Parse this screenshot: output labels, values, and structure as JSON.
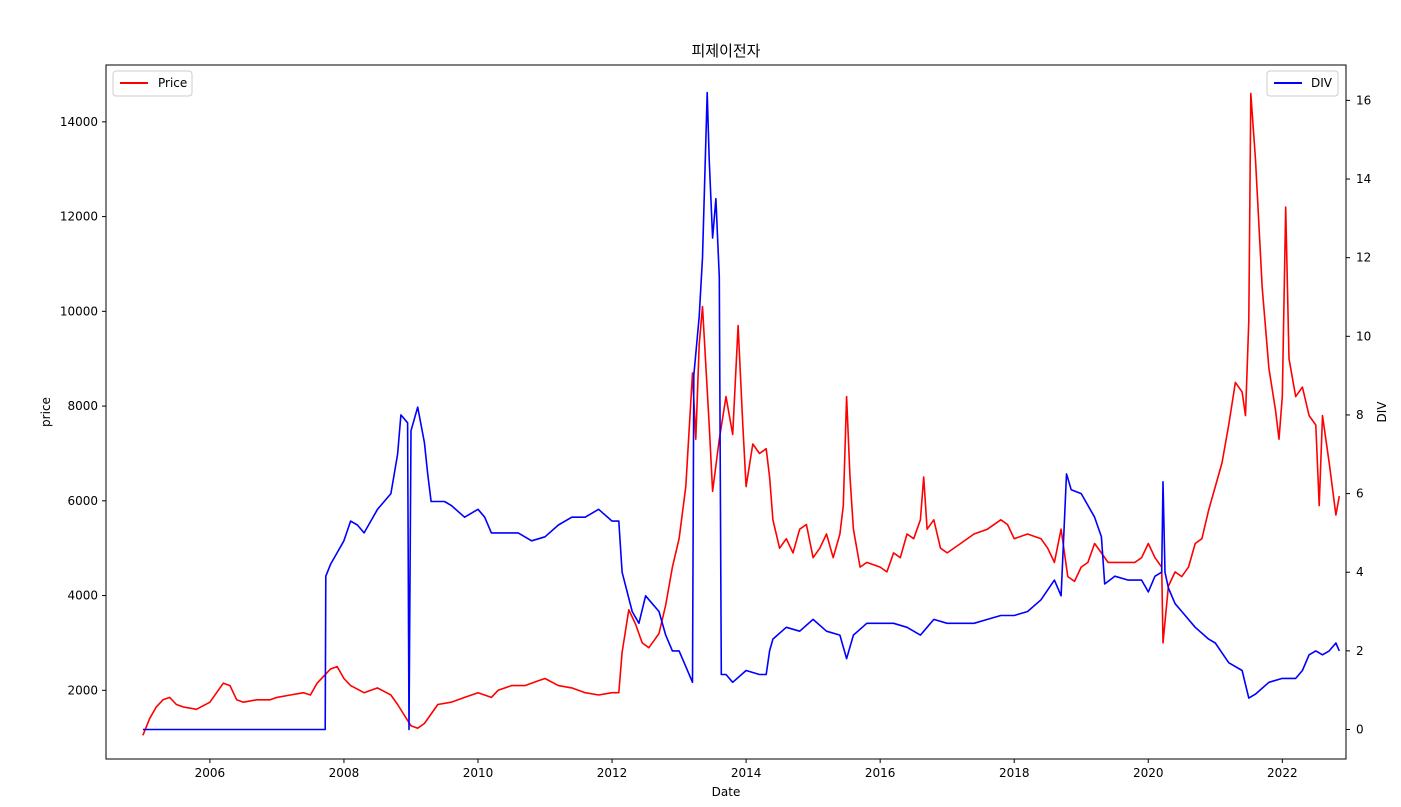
{
  "chart_data": {
    "type": "line",
    "title": "피제이전자",
    "xlabel": "Date",
    "ylabel_left": "price",
    "ylabel_right": "DIV",
    "xlim": [
      2004.45,
      2022.95
    ],
    "ylim_left": [
      550,
      15200
    ],
    "ylim_right": [
      -0.75,
      16.9
    ],
    "x_ticks": [
      2006,
      2008,
      2010,
      2012,
      2014,
      2016,
      2018,
      2020,
      2022
    ],
    "y_ticks_left": [
      2000,
      4000,
      6000,
      8000,
      10000,
      12000,
      14000
    ],
    "y_ticks_right": [
      0,
      2,
      4,
      6,
      8,
      10,
      12,
      14,
      16
    ],
    "legend_left": "top-left",
    "legend_right": "top-right",
    "grid": false,
    "series": [
      {
        "name": "Price",
        "axis": "left",
        "color": "#ff0000",
        "points": [
          [
            2005.0,
            1050
          ],
          [
            2005.1,
            1400
          ],
          [
            2005.2,
            1650
          ],
          [
            2005.3,
            1800
          ],
          [
            2005.4,
            1850
          ],
          [
            2005.5,
            1700
          ],
          [
            2005.6,
            1650
          ],
          [
            2005.8,
            1600
          ],
          [
            2006.0,
            1750
          ],
          [
            2006.1,
            1950
          ],
          [
            2006.2,
            2150
          ],
          [
            2006.3,
            2100
          ],
          [
            2006.4,
            1800
          ],
          [
            2006.5,
            1750
          ],
          [
            2006.7,
            1800
          ],
          [
            2006.9,
            1800
          ],
          [
            2007.0,
            1850
          ],
          [
            2007.2,
            1900
          ],
          [
            2007.4,
            1950
          ],
          [
            2007.5,
            1900
          ],
          [
            2007.6,
            2150
          ],
          [
            2007.7,
            2300
          ],
          [
            2007.8,
            2450
          ],
          [
            2007.9,
            2500
          ],
          [
            2008.0,
            2250
          ],
          [
            2008.1,
            2100
          ],
          [
            2008.3,
            1950
          ],
          [
            2008.5,
            2050
          ],
          [
            2008.7,
            1900
          ],
          [
            2008.8,
            1700
          ],
          [
            2009.0,
            1250
          ],
          [
            2009.1,
            1200
          ],
          [
            2009.2,
            1300
          ],
          [
            2009.4,
            1700
          ],
          [
            2009.6,
            1750
          ],
          [
            2009.8,
            1850
          ],
          [
            2010.0,
            1950
          ],
          [
            2010.2,
            1850
          ],
          [
            2010.3,
            2000
          ],
          [
            2010.5,
            2100
          ],
          [
            2010.7,
            2100
          ],
          [
            2010.9,
            2200
          ],
          [
            2011.0,
            2250
          ],
          [
            2011.2,
            2100
          ],
          [
            2011.4,
            2050
          ],
          [
            2011.6,
            1950
          ],
          [
            2011.8,
            1900
          ],
          [
            2012.0,
            1950
          ],
          [
            2012.1,
            1950
          ],
          [
            2012.15,
            2800
          ],
          [
            2012.25,
            3700
          ],
          [
            2012.35,
            3400
          ],
          [
            2012.45,
            3000
          ],
          [
            2012.55,
            2900
          ],
          [
            2012.7,
            3200
          ],
          [
            2012.8,
            3800
          ],
          [
            2012.9,
            4600
          ],
          [
            2013.0,
            5200
          ],
          [
            2013.1,
            6300
          ],
          [
            2013.2,
            8700
          ],
          [
            2013.25,
            7300
          ],
          [
            2013.3,
            9300
          ],
          [
            2013.35,
            10100
          ],
          [
            2013.45,
            7600
          ],
          [
            2013.5,
            6200
          ],
          [
            2013.6,
            7300
          ],
          [
            2013.7,
            8200
          ],
          [
            2013.8,
            7400
          ],
          [
            2013.88,
            9700
          ],
          [
            2013.95,
            7600
          ],
          [
            2014.0,
            6300
          ],
          [
            2014.1,
            7200
          ],
          [
            2014.2,
            7000
          ],
          [
            2014.3,
            7100
          ],
          [
            2014.35,
            6500
          ],
          [
            2014.4,
            5600
          ],
          [
            2014.5,
            5000
          ],
          [
            2014.6,
            5200
          ],
          [
            2014.7,
            4900
          ],
          [
            2014.8,
            5400
          ],
          [
            2014.9,
            5500
          ],
          [
            2015.0,
            4800
          ],
          [
            2015.1,
            5000
          ],
          [
            2015.2,
            5300
          ],
          [
            2015.3,
            4800
          ],
          [
            2015.4,
            5300
          ],
          [
            2015.45,
            5900
          ],
          [
            2015.5,
            8200
          ],
          [
            2015.55,
            6500
          ],
          [
            2015.6,
            5400
          ],
          [
            2015.7,
            4600
          ],
          [
            2015.8,
            4700
          ],
          [
            2016.0,
            4600
          ],
          [
            2016.1,
            4500
          ],
          [
            2016.2,
            4900
          ],
          [
            2016.3,
            4800
          ],
          [
            2016.4,
            5300
          ],
          [
            2016.5,
            5200
          ],
          [
            2016.6,
            5600
          ],
          [
            2016.65,
            6500
          ],
          [
            2016.7,
            5400
          ],
          [
            2016.8,
            5600
          ],
          [
            2016.9,
            5000
          ],
          [
            2017.0,
            4900
          ],
          [
            2017.2,
            5100
          ],
          [
            2017.4,
            5300
          ],
          [
            2017.6,
            5400
          ],
          [
            2017.8,
            5600
          ],
          [
            2017.9,
            5500
          ],
          [
            2018.0,
            5200
          ],
          [
            2018.2,
            5300
          ],
          [
            2018.4,
            5200
          ],
          [
            2018.5,
            5000
          ],
          [
            2018.6,
            4700
          ],
          [
            2018.7,
            5400
          ],
          [
            2018.8,
            4400
          ],
          [
            2018.9,
            4300
          ],
          [
            2019.0,
            4600
          ],
          [
            2019.1,
            4700
          ],
          [
            2019.2,
            5100
          ],
          [
            2019.3,
            4900
          ],
          [
            2019.4,
            4700
          ],
          [
            2019.6,
            4700
          ],
          [
            2019.8,
            4700
          ],
          [
            2019.9,
            4800
          ],
          [
            2020.0,
            5100
          ],
          [
            2020.1,
            4800
          ],
          [
            2020.2,
            4600
          ],
          [
            2020.22,
            3000
          ],
          [
            2020.3,
            4200
          ],
          [
            2020.4,
            4500
          ],
          [
            2020.5,
            4400
          ],
          [
            2020.6,
            4600
          ],
          [
            2020.7,
            5100
          ],
          [
            2020.8,
            5200
          ],
          [
            2020.9,
            5800
          ],
          [
            2021.0,
            6300
          ],
          [
            2021.1,
            6800
          ],
          [
            2021.2,
            7600
          ],
          [
            2021.3,
            8500
          ],
          [
            2021.4,
            8300
          ],
          [
            2021.45,
            7800
          ],
          [
            2021.5,
            9800
          ],
          [
            2021.53,
            14600
          ],
          [
            2021.6,
            13200
          ],
          [
            2021.7,
            10500
          ],
          [
            2021.8,
            8800
          ],
          [
            2021.9,
            7900
          ],
          [
            2021.95,
            7300
          ],
          [
            2022.0,
            8200
          ],
          [
            2022.05,
            12200
          ],
          [
            2022.1,
            9000
          ],
          [
            2022.2,
            8200
          ],
          [
            2022.3,
            8400
          ],
          [
            2022.4,
            7800
          ],
          [
            2022.5,
            7600
          ],
          [
            2022.55,
            5900
          ],
          [
            2022.6,
            7800
          ],
          [
            2022.7,
            6800
          ],
          [
            2022.8,
            5700
          ],
          [
            2022.85,
            6100
          ]
        ]
      },
      {
        "name": "DIV",
        "axis": "right",
        "color": "#0000ff",
        "points": [
          [
            2005.0,
            0.0
          ],
          [
            2007.72,
            0.0
          ],
          [
            2007.73,
            3.9
          ],
          [
            2007.8,
            4.2
          ],
          [
            2007.9,
            4.5
          ],
          [
            2008.0,
            4.8
          ],
          [
            2008.1,
            5.3
          ],
          [
            2008.2,
            5.2
          ],
          [
            2008.3,
            5.0
          ],
          [
            2008.4,
            5.3
          ],
          [
            2008.5,
            5.6
          ],
          [
            2008.6,
            5.8
          ],
          [
            2008.7,
            6.0
          ],
          [
            2008.8,
            7.0
          ],
          [
            2008.85,
            8.0
          ],
          [
            2008.95,
            7.8
          ],
          [
            2008.97,
            0.0
          ],
          [
            2009.0,
            7.6
          ],
          [
            2009.1,
            8.2
          ],
          [
            2009.2,
            7.3
          ],
          [
            2009.25,
            6.5
          ],
          [
            2009.3,
            5.8
          ],
          [
            2009.5,
            5.8
          ],
          [
            2009.6,
            5.7
          ],
          [
            2009.8,
            5.4
          ],
          [
            2010.0,
            5.6
          ],
          [
            2010.1,
            5.4
          ],
          [
            2010.2,
            5.0
          ],
          [
            2010.4,
            5.0
          ],
          [
            2010.6,
            5.0
          ],
          [
            2010.8,
            4.8
          ],
          [
            2011.0,
            4.9
          ],
          [
            2011.2,
            5.2
          ],
          [
            2011.4,
            5.4
          ],
          [
            2011.6,
            5.4
          ],
          [
            2011.8,
            5.6
          ],
          [
            2012.0,
            5.3
          ],
          [
            2012.1,
            5.3
          ],
          [
            2012.15,
            4.0
          ],
          [
            2012.3,
            3.0
          ],
          [
            2012.4,
            2.7
          ],
          [
            2012.5,
            3.4
          ],
          [
            2012.6,
            3.2
          ],
          [
            2012.7,
            3.0
          ],
          [
            2012.8,
            2.4
          ],
          [
            2012.9,
            2.0
          ],
          [
            2013.0,
            2.0
          ],
          [
            2013.1,
            1.6
          ],
          [
            2013.2,
            1.2
          ],
          [
            2013.22,
            9.0
          ],
          [
            2013.3,
            10.5
          ],
          [
            2013.35,
            12.0
          ],
          [
            2013.42,
            16.2
          ],
          [
            2013.45,
            14.5
          ],
          [
            2013.5,
            12.5
          ],
          [
            2013.55,
            13.5
          ],
          [
            2013.6,
            11.5
          ],
          [
            2013.63,
            1.4
          ],
          [
            2013.7,
            1.4
          ],
          [
            2013.8,
            1.2
          ],
          [
            2014.0,
            1.5
          ],
          [
            2014.2,
            1.4
          ],
          [
            2014.3,
            1.4
          ],
          [
            2014.35,
            2.0
          ],
          [
            2014.4,
            2.3
          ],
          [
            2014.6,
            2.6
          ],
          [
            2014.8,
            2.5
          ],
          [
            2015.0,
            2.8
          ],
          [
            2015.2,
            2.5
          ],
          [
            2015.4,
            2.4
          ],
          [
            2015.5,
            1.8
          ],
          [
            2015.6,
            2.4
          ],
          [
            2015.8,
            2.7
          ],
          [
            2016.0,
            2.7
          ],
          [
            2016.2,
            2.7
          ],
          [
            2016.4,
            2.6
          ],
          [
            2016.6,
            2.4
          ],
          [
            2016.7,
            2.6
          ],
          [
            2016.8,
            2.8
          ],
          [
            2017.0,
            2.7
          ],
          [
            2017.2,
            2.7
          ],
          [
            2017.4,
            2.7
          ],
          [
            2017.6,
            2.8
          ],
          [
            2017.8,
            2.9
          ],
          [
            2018.0,
            2.9
          ],
          [
            2018.2,
            3.0
          ],
          [
            2018.4,
            3.3
          ],
          [
            2018.6,
            3.8
          ],
          [
            2018.7,
            3.4
          ],
          [
            2018.78,
            6.5
          ],
          [
            2018.85,
            6.1
          ],
          [
            2019.0,
            6.0
          ],
          [
            2019.1,
            5.7
          ],
          [
            2019.2,
            5.4
          ],
          [
            2019.3,
            4.9
          ],
          [
            2019.35,
            3.7
          ],
          [
            2019.5,
            3.9
          ],
          [
            2019.7,
            3.8
          ],
          [
            2019.9,
            3.8
          ],
          [
            2020.0,
            3.5
          ],
          [
            2020.1,
            3.9
          ],
          [
            2020.2,
            4.0
          ],
          [
            2020.22,
            6.3
          ],
          [
            2020.25,
            4.0
          ],
          [
            2020.3,
            3.6
          ],
          [
            2020.4,
            3.2
          ],
          [
            2020.5,
            3.0
          ],
          [
            2020.7,
            2.6
          ],
          [
            2020.9,
            2.3
          ],
          [
            2021.0,
            2.2
          ],
          [
            2021.2,
            1.7
          ],
          [
            2021.4,
            1.5
          ],
          [
            2021.5,
            0.8
          ],
          [
            2021.6,
            0.9
          ],
          [
            2021.8,
            1.2
          ],
          [
            2022.0,
            1.3
          ],
          [
            2022.2,
            1.3
          ],
          [
            2022.3,
            1.5
          ],
          [
            2022.4,
            1.9
          ],
          [
            2022.5,
            2.0
          ],
          [
            2022.6,
            1.9
          ],
          [
            2022.7,
            2.0
          ],
          [
            2022.8,
            2.2
          ],
          [
            2022.85,
            2.0
          ]
        ]
      }
    ]
  }
}
